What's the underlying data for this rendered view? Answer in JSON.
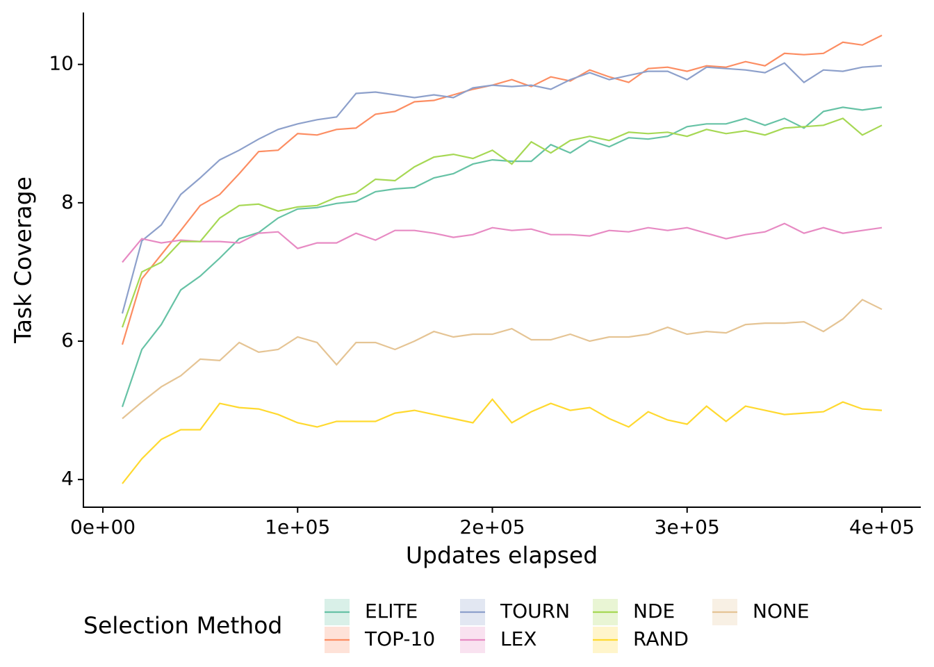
{
  "chart_data": {
    "type": "line",
    "x_label": "Updates elapsed",
    "y_label": "Task Coverage",
    "legend_title": "Selection Method",
    "x": [
      10000,
      20000,
      30000,
      40000,
      50000,
      60000,
      70000,
      80000,
      90000,
      100000,
      110000,
      120000,
      130000,
      140000,
      150000,
      160000,
      170000,
      180000,
      190000,
      200000,
      210000,
      220000,
      230000,
      240000,
      250000,
      260000,
      270000,
      280000,
      290000,
      300000,
      310000,
      320000,
      330000,
      340000,
      350000,
      360000,
      370000,
      380000,
      390000,
      400000
    ],
    "xlim": [
      -10000,
      420000
    ],
    "xticks": [
      {
        "value": 0,
        "label": "0e+00"
      },
      {
        "value": 100000,
        "label": "1e+05"
      },
      {
        "value": 200000,
        "label": "2e+05"
      },
      {
        "value": 300000,
        "label": "3e+05"
      },
      {
        "value": 400000,
        "label": "4e+05"
      }
    ],
    "ylim": [
      3.6,
      10.75
    ],
    "yticks": [
      4,
      6,
      8,
      10
    ],
    "grid": false,
    "legend_position": "bottom",
    "series": [
      {
        "name": "ELITE",
        "color": "#66c2a5",
        "values": [
          5.05,
          5.88,
          6.24,
          6.74,
          6.94,
          7.2,
          7.48,
          7.57,
          7.78,
          7.91,
          7.93,
          7.99,
          8.02,
          8.16,
          8.2,
          8.22,
          8.36,
          8.42,
          8.56,
          8.62,
          8.6,
          8.6,
          8.84,
          8.72,
          8.9,
          8.81,
          8.94,
          8.92,
          8.96,
          9.1,
          9.14,
          9.14,
          9.22,
          9.12,
          9.22,
          9.08,
          9.32,
          9.38,
          9.34,
          9.38
        ]
      },
      {
        "name": "TOP-10",
        "color": "#fc8d62",
        "values": [
          5.95,
          6.9,
          7.25,
          7.6,
          7.96,
          8.12,
          8.42,
          8.74,
          8.76,
          9.0,
          8.98,
          9.06,
          9.08,
          9.28,
          9.32,
          9.46,
          9.48,
          9.56,
          9.64,
          9.7,
          9.78,
          9.68,
          9.82,
          9.76,
          9.92,
          9.82,
          9.74,
          9.94,
          9.96,
          9.9,
          9.98,
          9.96,
          10.04,
          9.98,
          10.16,
          10.14,
          10.16,
          10.32,
          10.28,
          10.42
        ]
      },
      {
        "name": "TOURN",
        "color": "#8da0cb",
        "values": [
          6.4,
          7.45,
          7.68,
          8.12,
          8.36,
          8.62,
          8.76,
          8.92,
          9.06,
          9.14,
          9.2,
          9.24,
          9.58,
          9.6,
          9.56,
          9.52,
          9.56,
          9.52,
          9.66,
          9.7,
          9.68,
          9.7,
          9.64,
          9.78,
          9.88,
          9.78,
          9.84,
          9.9,
          9.9,
          9.78,
          9.96,
          9.94,
          9.92,
          9.88,
          10.02,
          9.74,
          9.92,
          9.9,
          9.96,
          9.98
        ]
      },
      {
        "name": "LEX",
        "color": "#e78ac3",
        "values": [
          7.14,
          7.48,
          7.42,
          7.46,
          7.44,
          7.44,
          7.42,
          7.56,
          7.58,
          7.34,
          7.42,
          7.42,
          7.56,
          7.46,
          7.6,
          7.6,
          7.56,
          7.5,
          7.54,
          7.64,
          7.6,
          7.62,
          7.54,
          7.54,
          7.52,
          7.6,
          7.58,
          7.64,
          7.6,
          7.64,
          7.56,
          7.48,
          7.54,
          7.58,
          7.7,
          7.56,
          7.64,
          7.56,
          7.6,
          7.64
        ]
      },
      {
        "name": "NDE",
        "color": "#a6d854",
        "values": [
          6.2,
          7.0,
          7.14,
          7.44,
          7.44,
          7.78,
          7.96,
          7.98,
          7.88,
          7.94,
          7.96,
          8.08,
          8.14,
          8.34,
          8.32,
          8.52,
          8.66,
          8.7,
          8.64,
          8.76,
          8.56,
          8.88,
          8.72,
          8.9,
          8.96,
          8.9,
          9.02,
          9.0,
          9.02,
          8.96,
          9.06,
          9.0,
          9.04,
          8.98,
          9.08,
          9.1,
          9.12,
          9.22,
          8.98,
          9.12
        ]
      },
      {
        "name": "RAND",
        "color": "#ffd92f",
        "values": [
          3.94,
          4.3,
          4.58,
          4.72,
          4.72,
          5.1,
          5.04,
          5.02,
          4.94,
          4.82,
          4.76,
          4.84,
          4.84,
          4.84,
          4.96,
          5.0,
          4.94,
          4.88,
          4.82,
          5.16,
          4.82,
          4.98,
          5.1,
          5.0,
          5.04,
          4.88,
          4.76,
          4.98,
          4.86,
          4.8,
          5.06,
          4.84,
          5.06,
          5.0,
          4.94,
          4.96,
          4.98,
          5.12,
          5.02,
          5.0
        ]
      },
      {
        "name": "NONE",
        "color": "#e5c494",
        "values": [
          4.88,
          5.12,
          5.34,
          5.5,
          5.74,
          5.72,
          5.98,
          5.84,
          5.88,
          6.06,
          5.98,
          5.66,
          5.98,
          5.98,
          5.88,
          6.0,
          6.14,
          6.06,
          6.1,
          6.1,
          6.18,
          6.02,
          6.02,
          6.1,
          6.0,
          6.06,
          6.06,
          6.1,
          6.2,
          6.1,
          6.14,
          6.12,
          6.24,
          6.26,
          6.26,
          6.28,
          6.14,
          6.32,
          6.6,
          6.46
        ]
      }
    ]
  }
}
